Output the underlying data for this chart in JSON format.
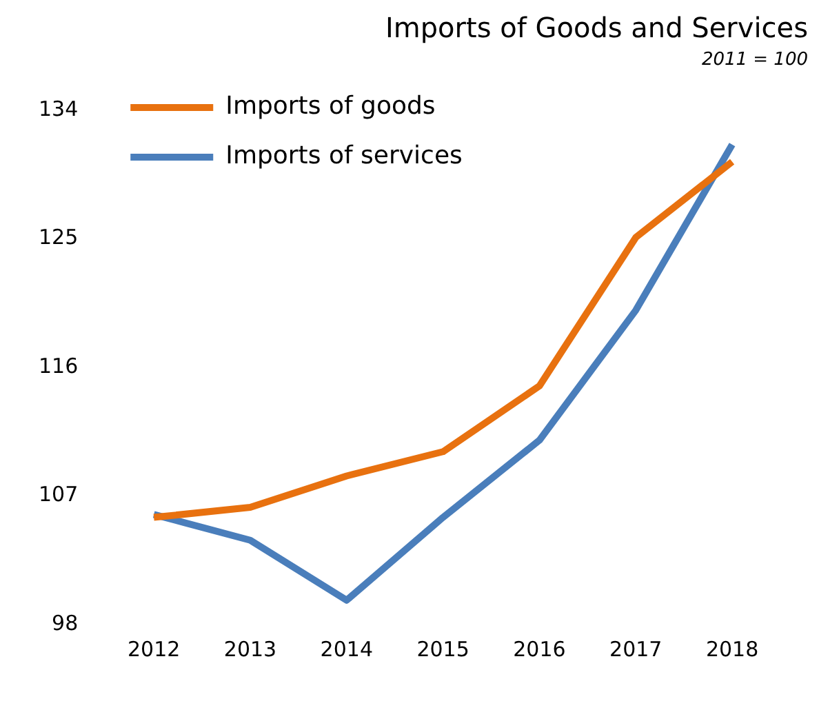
{
  "chart_data": {
    "type": "line",
    "title": "Imports of Goods and Services",
    "subtitle": "2011 = 100",
    "categories": [
      "2012",
      "2013",
      "2014",
      "2015",
      "2016",
      "2017",
      "2018"
    ],
    "series": [
      {
        "name": "Imports of goods",
        "color": "#e8710f",
        "values": [
          105.5,
          106.2,
          108.4,
          110.1,
          114.7,
          125.1,
          130.4
        ]
      },
      {
        "name": "Imports of services",
        "color": "#4a7ebb",
        "values": [
          105.7,
          103.9,
          99.7,
          105.5,
          110.9,
          120,
          131.6
        ]
      }
    ],
    "ylim": [
      98,
      134
    ],
    "yticks": [
      98,
      107,
      116,
      125,
      134
    ],
    "grid": false,
    "legend": "top left",
    "marker": "none",
    "line_style": "solid"
  }
}
